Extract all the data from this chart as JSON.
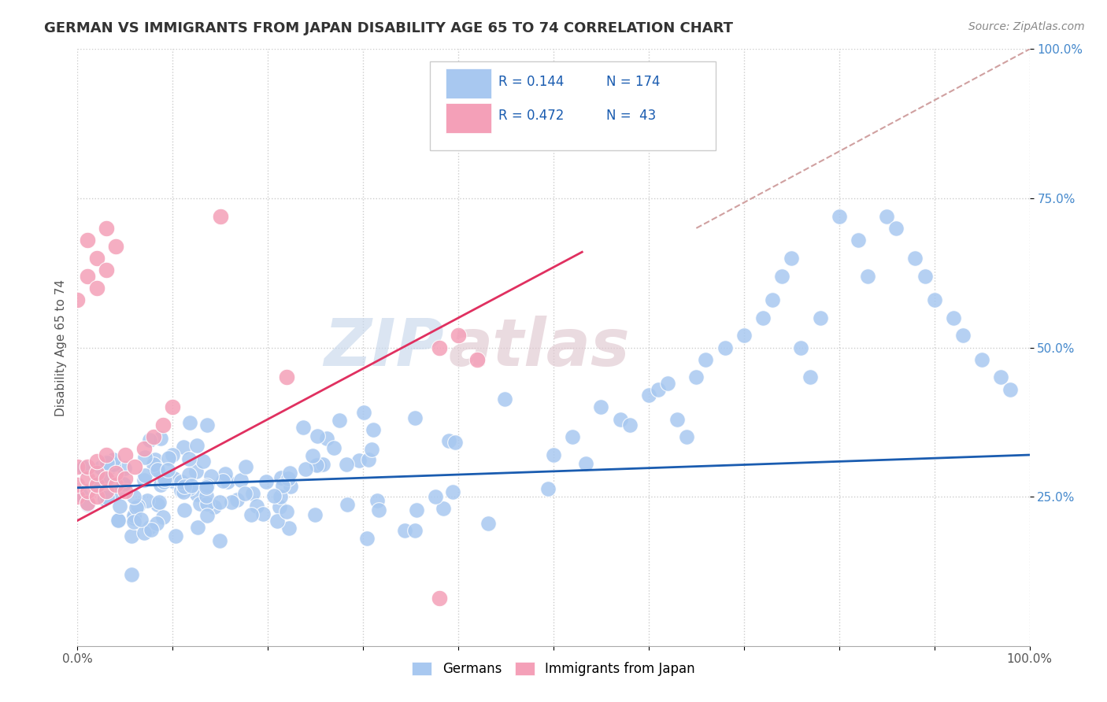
{
  "title": "GERMAN VS IMMIGRANTS FROM JAPAN DISABILITY AGE 65 TO 74 CORRELATION CHART",
  "source_text": "Source: ZipAtlas.com",
  "ylabel": "Disability Age 65 to 74",
  "xlim": [
    0,
    1
  ],
  "ylim": [
    0,
    1
  ],
  "xtick_labels": [
    "0.0%",
    "",
    "",
    "",
    "",
    "",
    "",
    "",
    "",
    "",
    "100.0%"
  ],
  "yticks": [
    0.25,
    0.5,
    0.75,
    1.0
  ],
  "ytick_labels": [
    "25.0%",
    "50.0%",
    "75.0%",
    "100.0%"
  ],
  "german_color": "#A8C8F0",
  "japan_color": "#F4A0B8",
  "german_line_color": "#1A5CB0",
  "japan_line_color": "#E03060",
  "diag_color": "#D0A0A0",
  "legend_r_german": "0.144",
  "legend_n_german": "174",
  "legend_r_japan": "0.472",
  "legend_n_japan": "43",
  "legend_text_color": "#1A5CB0",
  "watermark_color": "#D8E8F8",
  "watermark_color2": "#E8D0D8",
  "background_color": "#ffffff"
}
